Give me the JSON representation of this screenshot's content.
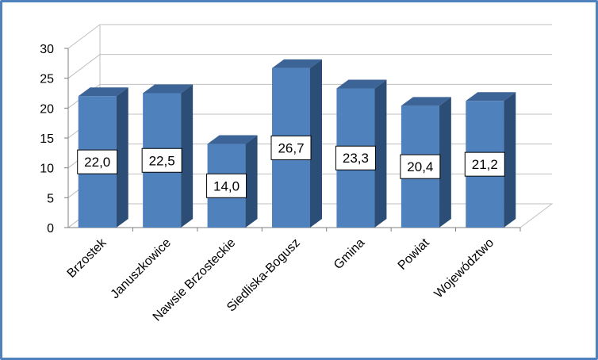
{
  "chart_data": {
    "type": "bar",
    "categories": [
      "Brzostek",
      "Januszkowice",
      "Nawsie Brzosteckie",
      "Siedliska-Bogusz",
      "Gmina",
      "Powiat",
      "Województwo"
    ],
    "values": [
      22.0,
      22.5,
      14.0,
      26.7,
      23.3,
      20.4,
      21.2
    ],
    "data_labels": [
      "22,0",
      "22,5",
      "14,0",
      "26,7",
      "23,3",
      "20,4",
      "21,2"
    ],
    "yticks": [
      "0",
      "5",
      "10",
      "15",
      "20",
      "25",
      "30"
    ],
    "ylim": [
      0,
      30
    ],
    "title": "",
    "xlabel": "",
    "ylabel": "",
    "grid": true,
    "legend": false,
    "style": "3d-column",
    "colors": {
      "bar_front": "#4f81bd",
      "bar_side": "#2c4d75",
      "bar_top": "#3d6496",
      "grid": "#bfbfbf",
      "border": "#4f81bd"
    }
  }
}
